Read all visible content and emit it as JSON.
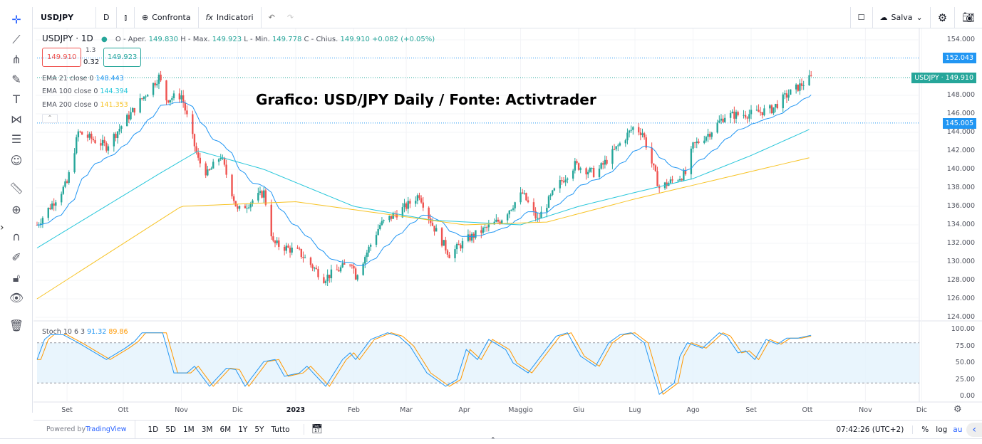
{
  "toolbar": {
    "symbol": "USDJPY",
    "interval": "D",
    "compare": "Confronta",
    "indicators": "Indicatori",
    "save": "Salva"
  },
  "legend": {
    "title": "USDJPY · 1D",
    "o_label": "O - Aper.",
    "o": "149.830",
    "h_label": "H - Max.",
    "h": "149.923",
    "l_label": "L - Min.",
    "l": "149.778",
    "c_label": "C - Chius.",
    "c": "149.910",
    "change": "+0.082 (+0.05%)",
    "sell": "149.910",
    "spread": "1.3",
    "lot": "0.32",
    "buy": "149.923"
  },
  "emas": [
    {
      "label": "EMA 21 close 0",
      "value": "148.443",
      "color": "#2196f3"
    },
    {
      "label": "EMA 100 close 0",
      "value": "144.394",
      "color": "#26c6da"
    },
    {
      "label": "EMA 200 close 0",
      "value": "141.353",
      "color": "#f7c325"
    }
  ],
  "chart_title": "Grafico: USD/JPY Daily / Fonte: Activtrader",
  "price_axis": [
    "154.000",
    "148.000",
    "146.000",
    "144.000",
    "142.000",
    "140.000",
    "138.000",
    "136.000",
    "134.000",
    "132.000",
    "130.000",
    "128.000",
    "126.000",
    "124.000"
  ],
  "price_tags": [
    {
      "text": "152.043",
      "price": 152.043,
      "color": "#2196f3"
    },
    {
      "text": "USDJPY · 149.910",
      "price": 149.91,
      "color": "#26a69a"
    },
    {
      "text": "145.005",
      "price": 145.005,
      "color": "#2196f3"
    }
  ],
  "stoch": {
    "label": "Stoch 10 6 3",
    "k": "91.32",
    "d": "89.86",
    "k_color": "#2196f3",
    "d_color": "#ff9800",
    "axis": [
      "100.00",
      "75.00",
      "50.00",
      "25.00",
      "0.00"
    ],
    "upper": 80,
    "lower": 20
  },
  "time_axis": [
    {
      "t": "Set",
      "d": "2022-09-01"
    },
    {
      "t": "Ott",
      "d": "2022-10-01"
    },
    {
      "t": "Nov",
      "d": "2022-11-01"
    },
    {
      "t": "Dic",
      "d": "2022-12-01"
    },
    {
      "t": "2023",
      "d": "2023-01-01"
    },
    {
      "t": "Feb",
      "d": "2023-02-01"
    },
    {
      "t": "Mar",
      "d": "2023-03-01"
    },
    {
      "t": "Apr",
      "d": "2023-04-01"
    },
    {
      "t": "Maggio",
      "d": "2023-05-01"
    },
    {
      "t": "Giu",
      "d": "2023-06-01"
    },
    {
      "t": "Lug",
      "d": "2023-07-01"
    },
    {
      "t": "Ago",
      "d": "2023-08-01"
    },
    {
      "t": "Set",
      "d": "2023-09-01"
    },
    {
      "t": "Ott",
      "d": "2023-10-01"
    },
    {
      "t": "Nov",
      "d": "2023-11-01"
    },
    {
      "t": "Dic",
      "d": "2023-12-01"
    }
  ],
  "bottom": {
    "powered": "Powered by ",
    "brand": "TradingView",
    "ranges": [
      "1D",
      "5D",
      "1M",
      "3M",
      "6M",
      "1Y",
      "5Y",
      "Tutto"
    ],
    "clock": "07:42:26 (UTC+2)",
    "pct": "%",
    "log": "log",
    "auto": "au"
  },
  "chart_data": {
    "type": "candlestick",
    "close_path": [
      [
        "2022-08-16",
        134
      ],
      [
        "2022-09-01",
        138.5
      ],
      [
        "2022-09-07",
        144
      ],
      [
        "2022-09-22",
        142.5
      ],
      [
        "2022-09-30",
        144.7
      ],
      [
        "2022-10-20",
        150
      ],
      [
        "2022-10-24",
        147.6
      ],
      [
        "2022-11-01",
        148
      ],
      [
        "2022-11-10",
        141
      ],
      [
        "2022-11-15",
        139.5
      ],
      [
        "2022-11-22",
        141.5
      ],
      [
        "2022-12-01",
        135.5
      ],
      [
        "2022-12-15",
        137.5
      ],
      [
        "2022-12-20",
        132
      ],
      [
        "2023-01-03",
        131
      ],
      [
        "2023-01-16",
        128.2
      ],
      [
        "2023-01-31",
        130
      ],
      [
        "2023-02-02",
        128.5
      ],
      [
        "2023-02-15",
        134
      ],
      [
        "2023-03-01",
        136
      ],
      [
        "2023-03-08",
        137.3
      ],
      [
        "2023-03-15",
        134
      ],
      [
        "2023-03-24",
        130.8
      ],
      [
        "2023-04-03",
        132.5
      ],
      [
        "2023-04-20",
        134.5
      ],
      [
        "2023-05-02",
        137.4
      ],
      [
        "2023-05-10",
        134.5
      ],
      [
        "2023-05-20",
        138
      ],
      [
        "2023-05-30",
        140.5
      ],
      [
        "2023-06-10",
        139.5
      ],
      [
        "2023-06-20",
        142
      ],
      [
        "2023-06-30",
        144.5
      ],
      [
        "2023-07-05",
        144
      ],
      [
        "2023-07-14",
        138
      ],
      [
        "2023-07-28",
        139.5
      ],
      [
        "2023-08-01",
        142.5
      ],
      [
        "2023-08-10",
        144
      ],
      [
        "2023-08-18",
        145.8
      ],
      [
        "2023-09-01",
        146
      ],
      [
        "2023-09-12",
        146.5
      ],
      [
        "2023-09-20",
        148
      ],
      [
        "2023-10-03",
        149.9
      ]
    ],
    "ema100": [
      [
        "2022-08-16",
        131.5
      ],
      [
        "2022-10-20",
        139.5
      ],
      [
        "2022-11-10",
        142
      ],
      [
        "2022-12-15",
        140
      ],
      [
        "2023-02-01",
        136
      ],
      [
        "2023-03-15",
        134.5
      ],
      [
        "2023-05-01",
        134
      ],
      [
        "2023-06-01",
        136
      ],
      [
        "2023-07-01",
        137.5
      ],
      [
        "2023-08-01",
        139
      ],
      [
        "2023-09-01",
        141.5
      ],
      [
        "2023-10-03",
        144.4
      ]
    ],
    "ema200": [
      [
        "2022-08-16",
        126
      ],
      [
        "2022-11-01",
        136
      ],
      [
        "2023-01-01",
        136.5
      ],
      [
        "2023-04-01",
        134
      ],
      [
        "2023-05-15",
        134.3
      ],
      [
        "2023-07-01",
        136.8
      ],
      [
        "2023-10-03",
        141.3
      ]
    ],
    "stoch_k": [
      [
        "2022-08-16",
        55
      ],
      [
        "2022-08-20",
        85
      ],
      [
        "2022-08-23",
        92
      ],
      [
        "2022-08-30",
        92
      ],
      [
        "2022-09-07",
        80
      ],
      [
        "2022-09-22",
        55
      ],
      [
        "2022-10-02",
        72
      ],
      [
        "2022-10-07",
        82
      ],
      [
        "2022-10-11",
        95
      ],
      [
        "2022-10-22",
        95
      ],
      [
        "2022-10-28",
        35
      ],
      [
        "2022-11-04",
        35
      ],
      [
        "2022-11-08",
        45
      ],
      [
        "2022-11-16",
        15
      ],
      [
        "2022-11-25",
        42
      ],
      [
        "2022-11-30",
        40
      ],
      [
        "2022-12-05",
        15
      ],
      [
        "2022-12-15",
        52
      ],
      [
        "2022-12-21",
        55
      ],
      [
        "2022-12-26",
        30
      ],
      [
        "2023-01-03",
        35
      ],
      [
        "2023-01-07",
        45
      ],
      [
        "2023-01-17",
        15
      ],
      [
        "2023-01-26",
        55
      ],
      [
        "2023-01-30",
        65
      ],
      [
        "2023-02-02",
        55
      ],
      [
        "2023-02-10",
        85
      ],
      [
        "2023-02-19",
        95
      ],
      [
        "2023-02-25",
        90
      ],
      [
        "2023-03-03",
        75
      ],
      [
        "2023-03-12",
        35
      ],
      [
        "2023-03-22",
        15
      ],
      [
        "2023-03-28",
        25
      ],
      [
        "2023-04-02",
        70
      ],
      [
        "2023-04-08",
        55
      ],
      [
        "2023-04-14",
        85
      ],
      [
        "2023-04-23",
        70
      ],
      [
        "2023-04-27",
        50
      ],
      [
        "2023-05-05",
        35
      ],
      [
        "2023-05-20",
        90
      ],
      [
        "2023-05-26",
        95
      ],
      [
        "2023-06-02",
        60
      ],
      [
        "2023-06-10",
        45
      ],
      [
        "2023-06-17",
        80
      ],
      [
        "2023-06-23",
        92
      ],
      [
        "2023-06-29",
        95
      ],
      [
        "2023-07-06",
        80
      ],
      [
        "2023-07-14",
        3
      ],
      [
        "2023-07-22",
        20
      ],
      [
        "2023-07-25",
        60
      ],
      [
        "2023-07-29",
        80
      ],
      [
        "2023-08-06",
        72
      ],
      [
        "2023-08-15",
        95
      ],
      [
        "2023-08-19",
        90
      ],
      [
        "2023-08-25",
        65
      ],
      [
        "2023-08-29",
        68
      ],
      [
        "2023-09-03",
        55
      ],
      [
        "2023-09-09",
        85
      ],
      [
        "2023-09-15",
        78
      ],
      [
        "2023-09-20",
        87
      ],
      [
        "2023-09-26",
        87
      ],
      [
        "2023-10-03",
        91.3
      ]
    ],
    "ylim": [
      124,
      154
    ],
    "stoch_ylim": [
      0,
      100
    ],
    "colors": {
      "up": "#26a69a",
      "down": "#ef5350",
      "ema21": "#2196f3",
      "ema100": "#26c6da",
      "ema200": "#f7c325"
    }
  }
}
